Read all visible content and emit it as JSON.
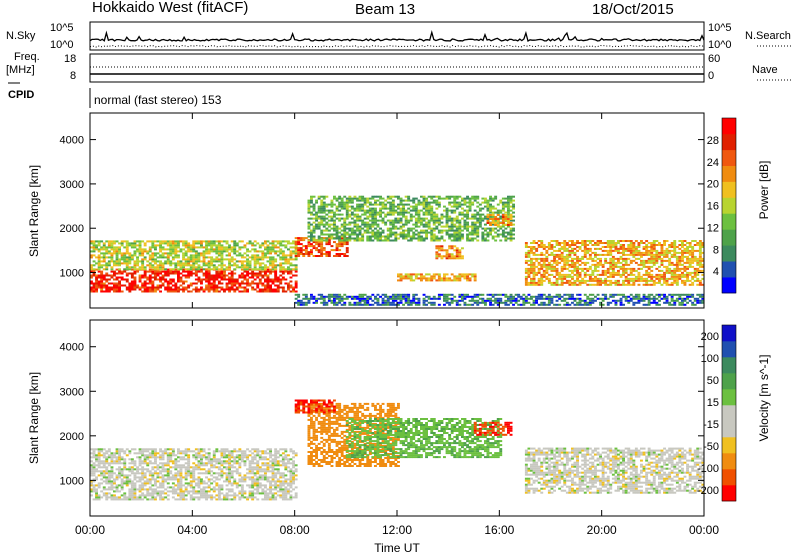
{
  "header": {
    "radar": "Hokkaido West (fitACF)",
    "beam": "Beam 13",
    "date": "18/Oct/2015"
  },
  "sky_panel": {
    "left_label": "N.Sky",
    "right_label": "N.Search",
    "tick_top": "10^5",
    "tick_bottom": "10^0"
  },
  "freq_panel": {
    "left_label_1": "Freq.",
    "left_label_2": "[MHz]",
    "left_ticks": [
      "18",
      "8"
    ],
    "right_ticks": [
      "60",
      "0"
    ],
    "right_label": "Nave"
  },
  "cpid_panel": {
    "label": "CPID",
    "mode": "normal (fast stereo) 153"
  },
  "colors": {
    "power": [
      "#0000ff",
      "#2050b0",
      "#3c8a5e",
      "#4ea24a",
      "#6cc040",
      "#b8d430",
      "#f0c020",
      "#f08c10",
      "#f05810",
      "#e02000",
      "#ff0000"
    ],
    "velocity": [
      "#ff0000",
      "#f05000",
      "#f08c10",
      "#f0c020",
      "#c8c8c0",
      "#c8c8c0",
      "#6cc040",
      "#4ea24a",
      "#3c8a5e",
      "#2050b0",
      "#1010c8"
    ]
  },
  "chart_data": [
    {
      "type": "heatmap",
      "panel": "power",
      "ylabel": "Slant Range [km]",
      "yticks": [
        1000,
        2000,
        3000,
        4000
      ],
      "ylim": [
        200,
        4600
      ],
      "xlim": [
        0,
        24
      ],
      "colorbar_label": "Power [dB]",
      "colorbar_ticks": [
        4,
        8,
        12,
        16,
        20,
        24,
        28
      ],
      "colorbar_range": [
        0,
        32
      ],
      "regions": [
        {
          "t": [
            0,
            8
          ],
          "r": [
            550,
            1050
          ],
          "v": 28
        },
        {
          "t": [
            0,
            8
          ],
          "r": [
            1050,
            1700
          ],
          "v": 16
        },
        {
          "t": [
            8,
            10
          ],
          "r": [
            1350,
            1800
          ],
          "v": 26
        },
        {
          "t": [
            8.5,
            16.5
          ],
          "r": [
            1700,
            2700
          ],
          "v": 12
        },
        {
          "t": [
            13.5,
            14.5
          ],
          "r": [
            1300,
            1600
          ],
          "v": 22
        },
        {
          "t": [
            15.5,
            16.5
          ],
          "r": [
            2050,
            2300
          ],
          "v": 22
        },
        {
          "t": [
            12,
            15
          ],
          "r": [
            800,
            950
          ],
          "v": 20
        },
        {
          "t": [
            17,
            24
          ],
          "r": [
            700,
            1700
          ],
          "v": 20
        },
        {
          "t": [
            8,
            24
          ],
          "r": [
            250,
            500
          ],
          "v": 6
        }
      ]
    },
    {
      "type": "heatmap",
      "panel": "velocity",
      "ylabel": "Slant Range [km]",
      "xlabel": "Time UT",
      "yticks": [
        1000,
        2000,
        3000,
        4000
      ],
      "ylim": [
        200,
        4600
      ],
      "xticks": [
        "00:00",
        "04:00",
        "08:00",
        "12:00",
        "16:00",
        "20:00",
        "00:00"
      ],
      "xlim": [
        0,
        24
      ],
      "colorbar_label": "Velocity [m s^-1]",
      "colorbar_ticks": [
        200,
        100,
        50,
        15,
        -15,
        -50,
        -100,
        -200
      ],
      "regions": [
        {
          "t": [
            0,
            8
          ],
          "r": [
            550,
            1700
          ],
          "v": 0
        },
        {
          "t": [
            8.5,
            12
          ],
          "r": [
            1300,
            2700
          ],
          "v": -70
        },
        {
          "t": [
            10,
            16
          ],
          "r": [
            1500,
            2400
          ],
          "v": 40
        },
        {
          "t": [
            15,
            16.5
          ],
          "r": [
            2000,
            2300
          ],
          "v": -200
        },
        {
          "t": [
            8,
            9.5
          ],
          "r": [
            2500,
            2800
          ],
          "v": -200
        },
        {
          "t": [
            17,
            24
          ],
          "r": [
            700,
            1700
          ],
          "v": 0
        }
      ]
    }
  ]
}
